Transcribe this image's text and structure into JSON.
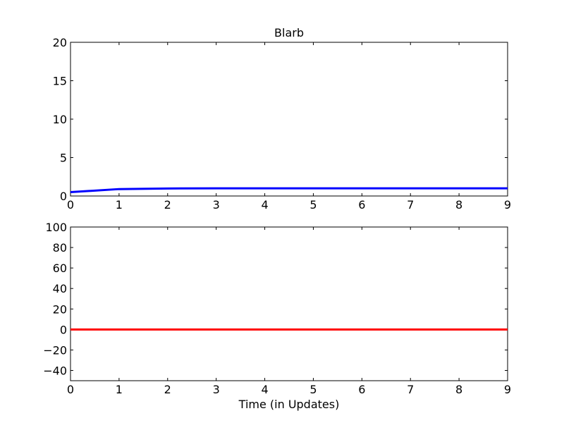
{
  "title": "Blarb",
  "chart_data": [
    {
      "type": "line",
      "title": "Blarb",
      "xlabel": "",
      "ylabel": "",
      "xlim": [
        0,
        9
      ],
      "ylim": [
        0,
        20
      ],
      "xticks": [
        "0",
        "1",
        "2",
        "3",
        "4",
        "5",
        "6",
        "7",
        "8",
        "9"
      ],
      "yticks": [
        "0",
        "5",
        "10",
        "15",
        "20"
      ],
      "grid": false,
      "series": [
        {
          "color": "#0000ff",
          "x": [
            0,
            1,
            2,
            3,
            4,
            5,
            6,
            7,
            8,
            9
          ],
          "y": [
            0.5,
            0.9,
            0.98,
            1.0,
            1.0,
            1.0,
            1.0,
            1.0,
            1.0,
            1.0
          ]
        }
      ]
    },
    {
      "type": "line",
      "title": "",
      "xlabel": "Time (in Updates)",
      "ylabel": "",
      "xlim": [
        0,
        9
      ],
      "ylim": [
        -50,
        100
      ],
      "xticks": [
        "0",
        "1",
        "2",
        "3",
        "4",
        "5",
        "6",
        "7",
        "8",
        "9"
      ],
      "yticks": [
        "−40",
        "−20",
        "0",
        "20",
        "40",
        "60",
        "80",
        "100"
      ],
      "grid": false,
      "series": [
        {
          "color": "#ff0000",
          "x": [
            0,
            1,
            2,
            3,
            4,
            5,
            6,
            7,
            8,
            9
          ],
          "y": [
            0,
            0,
            0,
            0,
            0,
            0,
            0,
            0,
            0,
            0
          ]
        }
      ]
    }
  ]
}
